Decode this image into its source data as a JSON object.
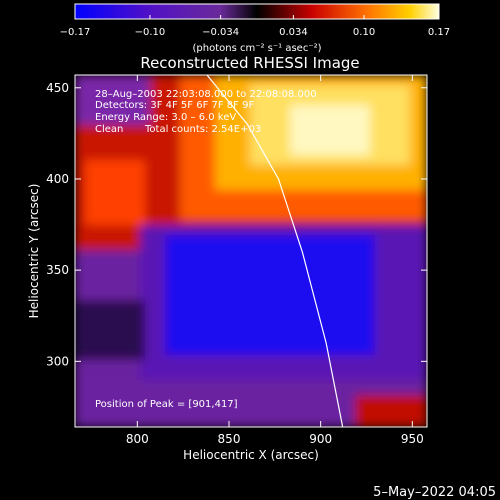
{
  "chart_data": {
    "type": "heatmap",
    "title": "Reconstructed RHESSI Image",
    "xlabel": "Heliocentric X (arcsec)",
    "ylabel": "Heliocentric Y (arcsec)",
    "xlim": [
      766,
      958
    ],
    "ylim": [
      264,
      457
    ],
    "x_ticks": [
      "800",
      "850",
      "900",
      "950"
    ],
    "y_ticks": [
      "300",
      "350",
      "400",
      "450"
    ],
    "colorbar": {
      "unit_label": "(photons cm⁻² s⁻¹ asec⁻²)",
      "range": [
        -0.17,
        0.17
      ],
      "ticks": [
        "−0.17",
        "−0.10",
        "−0.034",
        "0.034",
        "0.10",
        "0.17"
      ]
    },
    "annotations": [
      "28–Aug–2003 22:03:08.000 to 22:08:08.000",
      "Detectors: 3F 4F 5F 6F 7F 8F 9F",
      "Energy Range: 3.0 – 6.0 keV",
      "Clean",
      "Total counts: 2.54E+03"
    ],
    "peak_label": "Position of Peak = [901,417]",
    "peak": [
      901,
      417
    ],
    "limb_curve": [
      [
        838,
        457
      ],
      [
        860,
        430
      ],
      [
        877,
        400
      ],
      [
        890,
        360
      ],
      [
        903,
        310
      ],
      [
        912,
        264
      ]
    ],
    "grid": false,
    "legend": "none"
  },
  "footer": {
    "timestamp": "5–May–2022 04:05"
  }
}
